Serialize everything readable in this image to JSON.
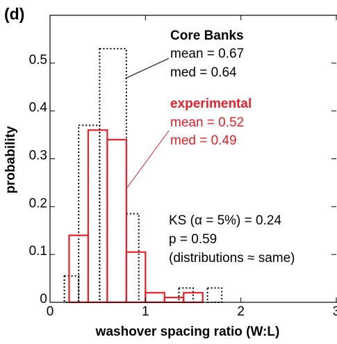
{
  "chart_data": {
    "type": "histogram",
    "panel_label": "(d)",
    "xlabel": "washover spacing ratio (W:L)",
    "ylabel": "probability",
    "xlim": [
      0,
      3
    ],
    "xticks": [
      0,
      1,
      2,
      3
    ],
    "ylim": [
      0,
      0.6
    ],
    "yticks": [
      0,
      0.1,
      0.2,
      0.3,
      0.4,
      0.5
    ],
    "series": [
      {
        "name": "Core Banks",
        "color": "#000000",
        "style": "dotted",
        "bins": [
          0.15,
          0.3,
          0.52,
          0.8,
          0.93,
          1.35,
          1.5,
          1.65,
          1.8
        ],
        "values": [
          0.055,
          0.37,
          0.53,
          0.185,
          0,
          0.03,
          0,
          0.03
        ],
        "stats": [
          "mean = 0.67",
          "med = 0.64"
        ]
      },
      {
        "name": "experimental",
        "color": "#e8202a",
        "style": "solid",
        "bins": [
          0.2,
          0.4,
          0.6,
          0.8,
          1.0,
          1.2,
          1.4,
          1.6
        ],
        "values": [
          0.14,
          0.36,
          0.34,
          0.105,
          0.02,
          0.01,
          0.02
        ],
        "stats": [
          "mean = 0.52",
          "med = 0.49"
        ]
      }
    ],
    "annotations": [
      "KS (α = 5%) = 0.24",
      "p = 0.59",
      "(distributions ≈ same)"
    ]
  }
}
